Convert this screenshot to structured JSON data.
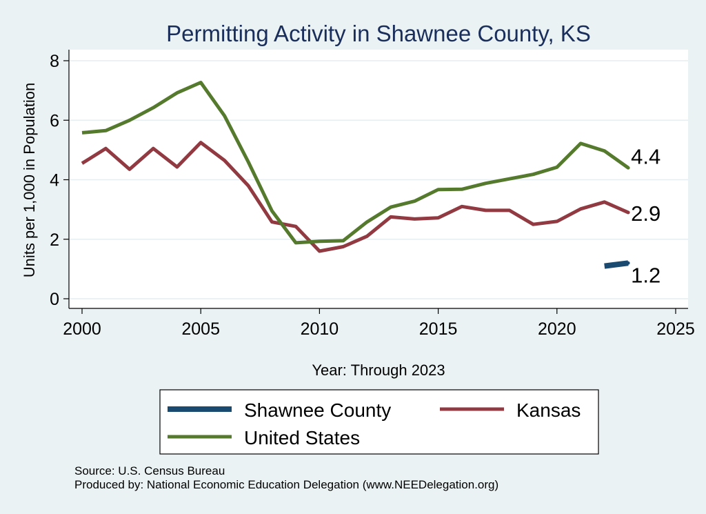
{
  "chart_data": {
    "type": "line",
    "title": "Permitting Activity in Shawnee County, KS",
    "xlabel": "Year: Through 2023",
    "ylabel": "Units per 1,000 in Population",
    "xlim": [
      2000,
      2025
    ],
    "ylim": [
      0,
      8
    ],
    "xticks": [
      2000,
      2005,
      2010,
      2015,
      2020,
      2025
    ],
    "yticks": [
      0,
      2,
      4,
      6,
      8
    ],
    "grid": "horizontal",
    "legend_placement": "bottom",
    "series": [
      {
        "name": "Shawnee County",
        "color": "#1b4a70",
        "x": [
          2022,
          2023
        ],
        "values": [
          1.1,
          1.2
        ],
        "end_label": "1.2"
      },
      {
        "name": "Kansas",
        "color": "#913a42",
        "x": [
          2000,
          2001,
          2002,
          2003,
          2004,
          2005,
          2006,
          2007,
          2008,
          2009,
          2010,
          2011,
          2012,
          2013,
          2014,
          2015,
          2016,
          2017,
          2018,
          2019,
          2020,
          2021,
          2022,
          2023
        ],
        "values": [
          4.55,
          5.05,
          4.35,
          5.05,
          4.43,
          5.25,
          4.65,
          3.8,
          2.58,
          2.43,
          1.6,
          1.75,
          2.1,
          2.75,
          2.68,
          2.72,
          3.1,
          2.97,
          2.97,
          2.5,
          2.6,
          3.02,
          3.25,
          2.9
        ],
        "end_label": "2.9"
      },
      {
        "name": "United States",
        "color": "#557a2e",
        "x": [
          2000,
          2001,
          2002,
          2003,
          2004,
          2005,
          2006,
          2007,
          2008,
          2009,
          2010,
          2011,
          2012,
          2013,
          2014,
          2015,
          2016,
          2017,
          2018,
          2019,
          2020,
          2021,
          2022,
          2023
        ],
        "values": [
          5.58,
          5.65,
          6.0,
          6.42,
          6.92,
          7.27,
          6.15,
          4.6,
          2.95,
          1.88,
          1.93,
          1.95,
          2.58,
          3.08,
          3.28,
          3.67,
          3.68,
          3.88,
          4.03,
          4.18,
          4.42,
          5.22,
          4.97,
          4.4
        ],
        "end_label": "4.4"
      }
    ]
  },
  "legend": {
    "items": [
      {
        "label": "Shawnee County",
        "color": "#1b4a70"
      },
      {
        "label": "Kansas",
        "color": "#913a42"
      },
      {
        "label": "United States",
        "color": "#557a2e"
      }
    ]
  },
  "notes": {
    "source": "Source: U.S. Census Bureau",
    "produced_by": "Produced by: National Economic Education Delegation (www.NEEDelegation.org)"
  }
}
